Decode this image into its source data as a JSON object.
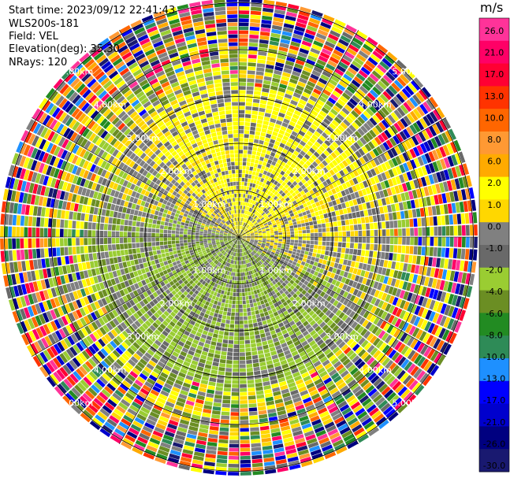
{
  "header": {
    "start_time": "Start time: 2023/09/12 22:41:43",
    "instrument": "WLS200s-181",
    "field": "Field: VEL",
    "elevation": "Elevation(deg): 35.30",
    "nrays": "NRays: 120"
  },
  "chart_data": {
    "type": "heatmap",
    "projection": "polar-ppi",
    "field": "VEL",
    "units": "m/s",
    "nrays": 120,
    "range_rings_km": [
      1,
      2,
      3,
      4,
      5
    ],
    "range_ring_labels": [
      "1.00km",
      "2.00km",
      "3.00km",
      "4.00km",
      "5.00km"
    ],
    "colorbar": {
      "title": "m/s",
      "ticks": [
        "26.0",
        "21.0",
        "17.0",
        "13.0",
        "10.0",
        "8.0",
        "6.0",
        "2.0",
        "1.0",
        "0.0",
        "-1.0",
        "-2.0",
        "-4.0",
        "-6.0",
        "-8.0",
        "-10.0",
        "-13.0",
        "-17.0",
        "-21.0",
        "-26.0",
        "-30.0"
      ],
      "colors": [
        "#ff3399",
        "#ff0066",
        "#ff0033",
        "#ff3300",
        "#ff6600",
        "#ff9933",
        "#ffaa00",
        "#ffff00",
        "#ffd700",
        "#808080",
        "#696969",
        "#9acd32",
        "#6b8e23",
        "#228b22",
        "#2e8b57",
        "#1e90ff",
        "#0000ff",
        "#0000cd",
        "#000080",
        "#191970"
      ]
    },
    "legend_position": "right"
  }
}
